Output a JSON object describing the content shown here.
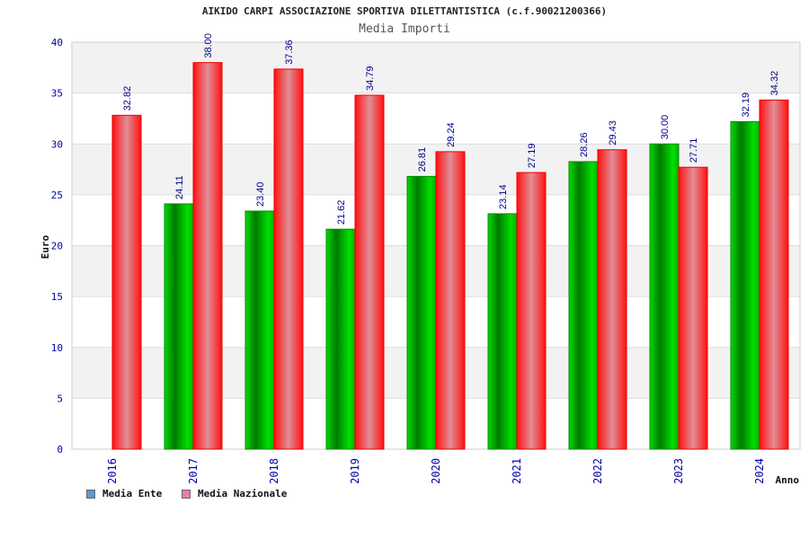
{
  "chart_data": {
    "type": "bar",
    "title": "AIKIDO CARPI ASSOCIAZIONE SPORTIVA DILETTANTISTICA (c.f.90021200366)",
    "subtitle": "Media Importi",
    "xlabel": "Anno",
    "ylabel": "Euro",
    "ylim": [
      0,
      40
    ],
    "yticks": [
      0,
      5,
      10,
      15,
      20,
      25,
      30,
      35,
      40
    ],
    "grid": true,
    "legend_position": "bottom-left",
    "categories": [
      "2016",
      "2017",
      "2018",
      "2019",
      "2020",
      "2021",
      "2022",
      "2023",
      "2024"
    ],
    "series": [
      {
        "name": "Media Ente",
        "color": "#00b000",
        "legend_color": "#5b9bd5",
        "values": [
          null,
          24.11,
          23.4,
          21.62,
          26.81,
          23.14,
          28.26,
          30.0,
          32.19
        ],
        "labels": [
          "",
          "24.11",
          "23.40",
          "21.62",
          "26.81",
          "23.14",
          "28.26",
          "30.00",
          "32.19"
        ]
      },
      {
        "name": "Media Nazionale",
        "color": "#ff1a1a",
        "legend_color": "#e87ea8",
        "values": [
          32.82,
          38.0,
          37.36,
          34.79,
          29.24,
          27.19,
          29.43,
          27.71,
          34.32
        ],
        "labels": [
          "32.82",
          "38.00",
          "37.36",
          "34.79",
          "29.24",
          "27.19",
          "29.43",
          "27.71",
          "34.32"
        ]
      }
    ]
  }
}
